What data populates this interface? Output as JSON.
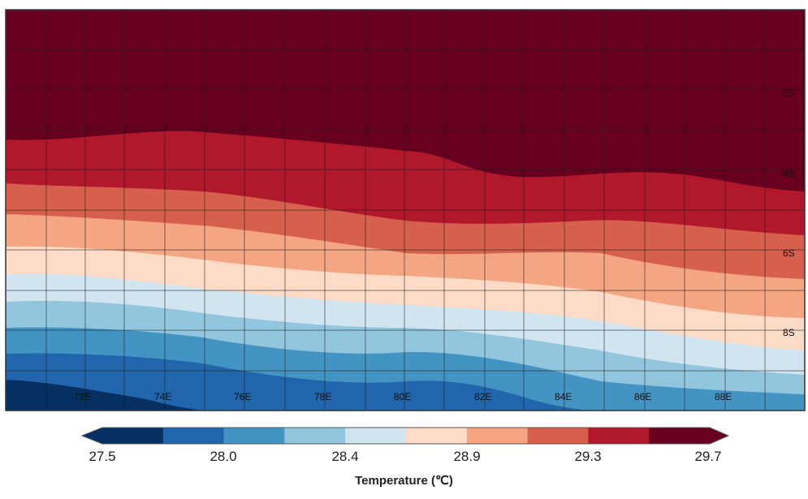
{
  "map": {
    "lat_labels": [
      "2S",
      "4S",
      "6S",
      "8S"
    ],
    "lon_labels": [
      "72E",
      "74E",
      "76E",
      "78E",
      "80E",
      "82E",
      "84E",
      "86E",
      "88E"
    ]
  },
  "colorbar": {
    "title": "Temperature  (℃)",
    "tick_labels": [
      "27.5",
      "28.0",
      "28.4",
      "28.9",
      "29.3",
      "29.7"
    ],
    "colors": [
      "#053061",
      "#2166ac",
      "#4393c3",
      "#92c5de",
      "#d1e5f0",
      "#fddbc7",
      "#f4a582",
      "#d6604d",
      "#b2182b",
      "#67001f"
    ],
    "extend": "both"
  }
}
